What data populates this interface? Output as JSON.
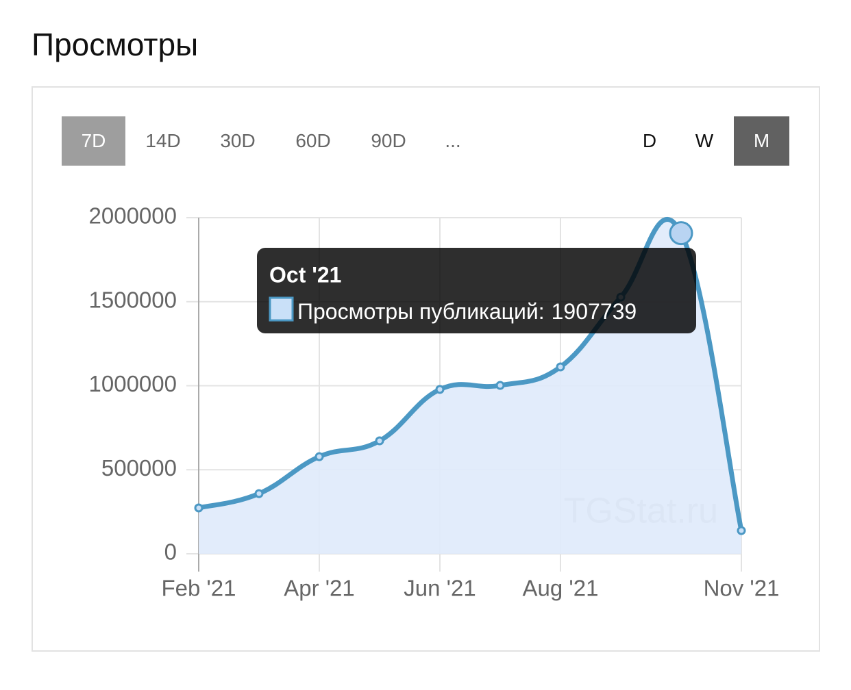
{
  "header": {
    "title": "Просмотры"
  },
  "range_buttons": [
    "7D",
    "14D",
    "30D",
    "60D",
    "90D",
    "..."
  ],
  "period_buttons": [
    "D",
    "W",
    "M"
  ],
  "watermark": "TGStat.ru",
  "tooltip": {
    "title": "Oct '21",
    "label": "Просмотры публикаций:"
  },
  "chart_data": {
    "type": "line",
    "categories": [
      "Feb '21",
      null,
      "Apr '21",
      null,
      "Jun '21",
      null,
      "Aug '21",
      null,
      null,
      "Nov '21"
    ],
    "values": [
      273000,
      358000,
      578000,
      672000,
      978000,
      1002000,
      1112000,
      1527000,
      1907739,
      138000
    ],
    "color": "#4b98c4",
    "fill": "#dfeafb",
    "ylim": [
      0,
      2000000
    ],
    "yticks": [
      0,
      500000,
      1000000,
      1500000,
      2000000
    ],
    "grid": true
  }
}
